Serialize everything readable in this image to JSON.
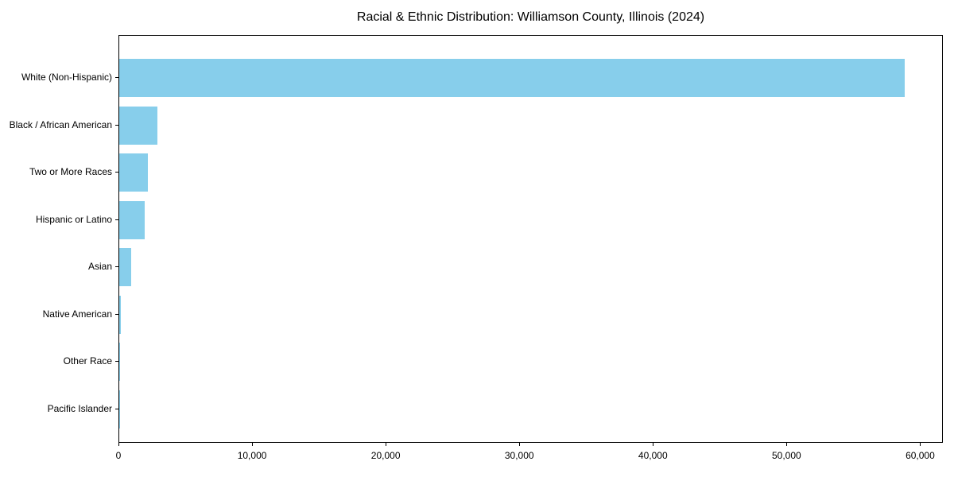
{
  "title": "Racial & Ethnic Distribution: Williamson County, Illinois (2024)",
  "colors": {
    "bar": "#87CEEB",
    "axis": "#000000",
    "text": "#000000",
    "background": "#FFFFFF"
  },
  "chart_data": {
    "type": "bar",
    "orientation": "horizontal",
    "title": "Racial & Ethnic Distribution: Williamson County, Illinois (2024)",
    "categories": [
      "White (Non-Hispanic)",
      "Black / African American",
      "Two or More Races",
      "Hispanic or Latino",
      "Asian",
      "Native American",
      "Other Race",
      "Pacific Islander"
    ],
    "values": [
      58800,
      2860,
      2150,
      1900,
      890,
      100,
      70,
      20
    ],
    "xlabel": "",
    "ylabel": "",
    "xlim": [
      0,
      61700
    ],
    "xticks": [
      0,
      10000,
      20000,
      30000,
      40000,
      50000,
      60000
    ],
    "xtick_labels": [
      "0",
      "10,000",
      "20,000",
      "30,000",
      "40,000",
      "50,000",
      "60,000"
    ],
    "grid": false,
    "legend": null,
    "bar_color": "#87CEEB"
  }
}
